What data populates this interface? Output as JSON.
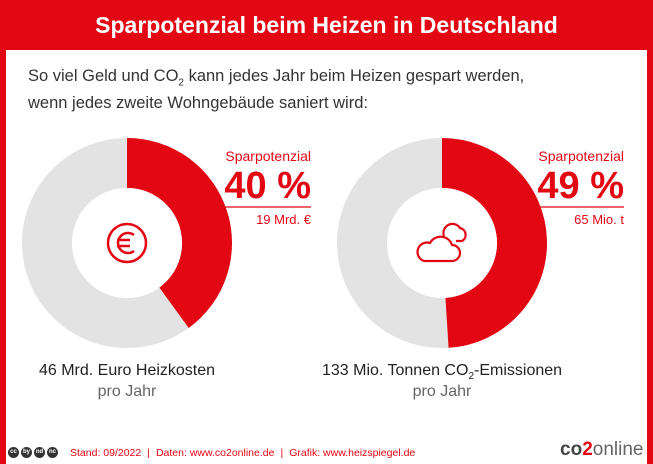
{
  "header": {
    "title": "Sparpotenzial beim Heizen in Deutschland"
  },
  "intro": {
    "line1_pre": "So viel Geld und CO",
    "line1_sub": "2",
    "line1_post": " kann jedes Jahr beim Heizen gespart werden,",
    "line2": "wenn jedes zweite Wohngebäude saniert wird:"
  },
  "colors": {
    "accent": "#e30613",
    "track": "#e3e3e3"
  },
  "chart_data": [
    {
      "type": "pie",
      "variant": "donut",
      "icon": "euro-icon",
      "share_label": "Sparpotenzial",
      "percent": 40,
      "percent_label": "40 %",
      "saving_label": "19 Mrd. €",
      "total_main": "46 Mrd. Euro Heizkosten",
      "total_sub": "pro Jahr"
    },
    {
      "type": "pie",
      "variant": "donut",
      "icon": "cloud-icon",
      "share_label": "Sparpotenzial",
      "percent": 49,
      "percent_label": "49 %",
      "saving_label": "65 Mio. t",
      "total_main_pre": "133 Mio. Tonnen CO",
      "total_main_sub": "2",
      "total_main_post": "-Emissionen",
      "total_sub": "pro Jahr"
    }
  ],
  "footer": {
    "license_icons": [
      "cc",
      "by",
      "nd",
      "nc"
    ],
    "stand": "Stand: 09/2022",
    "daten": "Daten: www.co2online.de",
    "grafik": "Grafik: www.heizspiegel.de",
    "separator": "|"
  },
  "logo": {
    "part1": "co",
    "part2": "2",
    "part3": "online"
  }
}
